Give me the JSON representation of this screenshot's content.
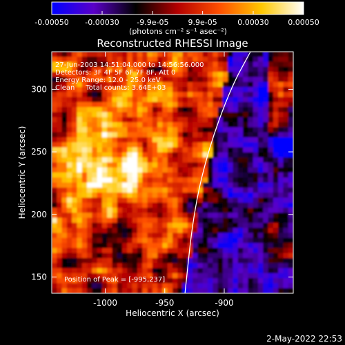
{
  "chart_data": {
    "type": "heatmap",
    "title": "Reconstructed RHESSI Image",
    "colorbar": {
      "ticks": [
        "-0.00050",
        "-0.00030",
        "-9.9e-05",
        "9.9e-05",
        "0.00030",
        "0.00050"
      ],
      "tick_values": [
        -0.0005,
        -0.0003,
        -9.9e-05,
        9.9e-05,
        0.0003,
        0.0005
      ],
      "units_label": "(photons cm⁻² s⁻¹ asec⁻²)",
      "range": [
        -0.0005,
        0.0005
      ],
      "colors": [
        "#0000ff",
        "#5a00c8",
        "#000000",
        "#b40000",
        "#ff5000",
        "#ffc800",
        "#ffffff"
      ]
    },
    "xlabel": "Heliocentric X (arcsec)",
    "ylabel": "Heliocentric Y (arcsec)",
    "xlim": [
      -1045,
      -842
    ],
    "ylim": [
      137,
      330
    ],
    "x_ticks": [
      "-1000",
      "-950",
      "-900"
    ],
    "x_tick_values": [
      -1000,
      -950,
      -900
    ],
    "y_ticks": [
      "150",
      "200",
      "250",
      "300"
    ],
    "y_tick_values": [
      150,
      200,
      250,
      300
    ],
    "annotations": [
      "27-Jun-2003 14:51:04.000 to 14:56:56.000",
      "Detectors: 3F 4F 5F 6F 7F 8F, Att 0",
      "Energy Range: 12.0 - 25.0 keV",
      "Clean     Total counts: 3.64E+03"
    ],
    "peak_label": "Position of Peak = [-995,237]",
    "peak_position": [
      -995,
      237
    ],
    "limb": {
      "color": "#ffffff",
      "points": [
        [
          -933,
          137
        ],
        [
          -926,
          200
        ],
        [
          -914,
          250
        ],
        [
          -895,
          300
        ],
        [
          -878,
          330
        ]
      ]
    }
  },
  "footer": {
    "timestamp": "2-May-2022 22:53"
  }
}
